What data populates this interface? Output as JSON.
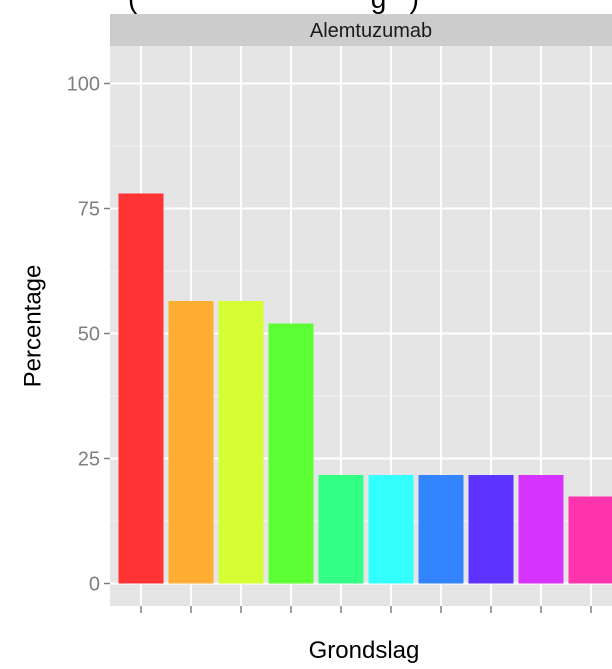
{
  "partial_title": "(                              g   )",
  "chart_data": {
    "type": "bar",
    "facet_label": "Alemtuzumab",
    "xlabel": "Grondslag",
    "ylabel": "Percentage",
    "ylim": [
      -4.5,
      107.5
    ],
    "yticks": [
      0,
      25,
      50,
      75,
      100
    ],
    "grid": true,
    "categories": [
      "",
      "",
      "",
      "",
      "",
      "",
      "",
      "",
      "",
      ""
    ],
    "values": [
      78,
      56.5,
      56.5,
      52,
      21.7,
      21.7,
      21.7,
      21.7,
      21.7,
      17.4
    ],
    "colors": [
      "#FF3333",
      "#FFAD33",
      "#D6FF33",
      "#5CFF33",
      "#33FF85",
      "#33FFFF",
      "#3385FF",
      "#5C33FF",
      "#D633FF",
      "#FF33AD"
    ]
  },
  "background": "#E5E5E5",
  "strip_background": "#CCCCCC"
}
